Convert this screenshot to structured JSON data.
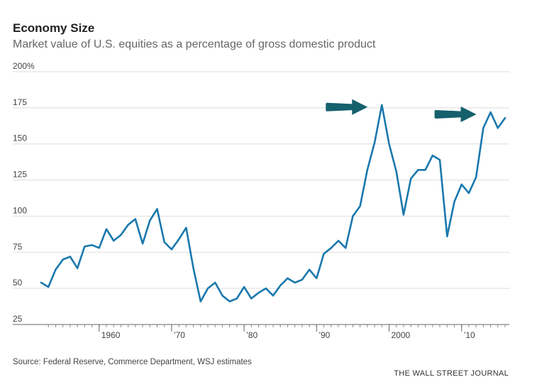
{
  "chart_data": {
    "type": "line",
    "title": "Economy Size",
    "subtitle": "Market value of U.S. equities as a percentage of gross domestic product",
    "xlabel": "",
    "ylabel": "",
    "xlim": [
      1952,
      2016
    ],
    "ylim": [
      25,
      200
    ],
    "yticks": [
      {
        "value": 200,
        "label": "200%"
      },
      {
        "value": 175,
        "label": "175"
      },
      {
        "value": 150,
        "label": "150"
      },
      {
        "value": 125,
        "label": "125"
      },
      {
        "value": 100,
        "label": "100"
      },
      {
        "value": 75,
        "label": "75"
      },
      {
        "value": 50,
        "label": "50"
      },
      {
        "value": 25,
        "label": "25"
      }
    ],
    "xticks": [
      {
        "value": 1960,
        "label": "1960"
      },
      {
        "value": 1970,
        "label": "’70"
      },
      {
        "value": 1980,
        "label": "’80"
      },
      {
        "value": 1990,
        "label": "’90"
      },
      {
        "value": 2000,
        "label": "2000"
      },
      {
        "value": 2010,
        "label": "’10"
      }
    ],
    "grid": true,
    "color": "#1a78ad",
    "arrow_color": "#15606d",
    "annotations": [
      {
        "type": "arrow",
        "points_to_year": 1999
      },
      {
        "type": "arrow",
        "points_to_year": 2014
      }
    ],
    "x": [
      1952,
      1953,
      1954,
      1955,
      1956,
      1957,
      1958,
      1959,
      1960,
      1961,
      1962,
      1963,
      1964,
      1965,
      1966,
      1967,
      1968,
      1969,
      1970,
      1971,
      1972,
      1973,
      1974,
      1975,
      1976,
      1977,
      1978,
      1979,
      1980,
      1981,
      1982,
      1983,
      1984,
      1985,
      1986,
      1987,
      1988,
      1989,
      1990,
      1991,
      1992,
      1993,
      1994,
      1995,
      1996,
      1997,
      1998,
      1999,
      2000,
      2001,
      2002,
      2003,
      2004,
      2005,
      2006,
      2007,
      2008,
      2009,
      2010,
      2011,
      2012,
      2013,
      2014,
      2015,
      2016
    ],
    "series": [
      {
        "values": [
          54,
          51,
          63,
          70,
          72,
          64,
          79,
          80,
          78,
          91,
          83,
          87,
          94,
          98,
          81,
          97,
          105,
          82,
          77,
          84,
          92,
          64,
          41,
          50,
          54,
          45,
          41,
          43,
          51,
          43,
          47,
          50,
          45,
          52,
          57,
          54,
          56,
          63,
          57,
          74,
          78,
          83,
          78,
          100,
          107,
          132,
          151,
          177,
          150,
          131,
          101,
          126,
          132,
          132,
          142,
          139,
          86,
          110,
          122,
          116,
          127,
          161,
          172,
          161,
          168
        ]
      }
    ]
  },
  "footer": {
    "source": "Source: Federal Reserve, Commerce Department, WSJ estimates",
    "credit": "THE WALL STREET JOURNAL"
  }
}
